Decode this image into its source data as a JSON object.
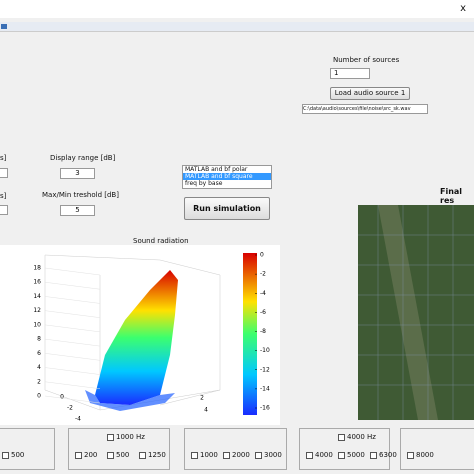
{
  "window": {
    "close": "x"
  },
  "left_cut": {
    "label_1": "s]",
    "label_2": "s]"
  },
  "sources": {
    "label": "Number of sources",
    "count": "1",
    "load_button": "Load audio source 1",
    "file_path": "C:\\data\\audio\\sources\\file\\noise\\src_sk.wav"
  },
  "display_range": {
    "label": "Display range [dB]",
    "value": "3"
  },
  "threshold": {
    "label": "Max/Min treshold [dB]",
    "value": "5"
  },
  "method_list": {
    "items": [
      "MATLAB and bf polar",
      "MATLAB and bf square",
      "freq by base"
    ],
    "selected": 1
  },
  "run_button": "Run simulation",
  "plot": {
    "title": "Sound radiation",
    "z_ticks": [
      18,
      16,
      14,
      12,
      10,
      8,
      6,
      4,
      2,
      0
    ],
    "x_ticks": [
      0,
      -2,
      -4
    ],
    "y_ticks": [
      2,
      4
    ],
    "colorbar_ticks": [
      0,
      -2,
      -4,
      -6,
      -8,
      -10,
      -12,
      -14,
      -16
    ]
  },
  "result": {
    "title": "Final res"
  },
  "bottom_panels": [
    {
      "top": "",
      "items": [
        "500"
      ]
    },
    {
      "top": "1000 Hz",
      "items": [
        "200",
        "500",
        "1250"
      ]
    },
    {
      "top": "",
      "items": [
        "1000",
        "2000",
        "3000"
      ]
    },
    {
      "top": "4000 Hz",
      "items": [
        "4000",
        "5000",
        "6300"
      ]
    },
    {
      "top": "",
      "items": [
        "8000"
      ]
    }
  ]
}
